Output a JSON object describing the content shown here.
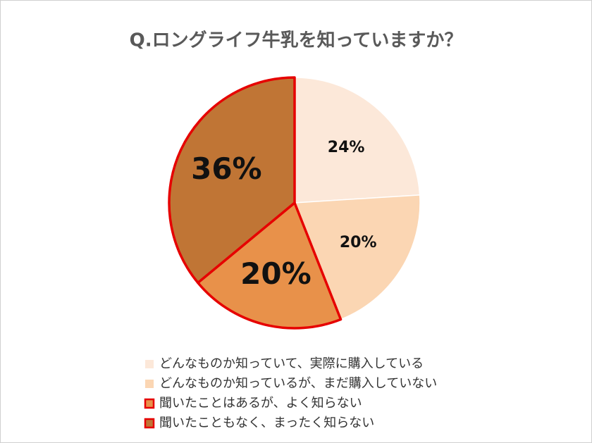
{
  "chart_data": {
    "type": "pie",
    "title": "Q.ロングライフ牛乳を知っていますか？",
    "categories": [
      "どんなものか知っていて、実際に購入している",
      "どんなものか知っているが、まだ購入していない",
      "聞いたことはあるが、よく知らない",
      "聞いたこともなく、まったく知らない"
    ],
    "values": [
      24,
      20,
      20,
      36
    ],
    "value_labels": [
      "24%",
      "20%",
      "20%",
      "36%"
    ],
    "colors": [
      "#fce8d9",
      "#fbd6b3",
      "#e8914a",
      "#c07535"
    ],
    "edgecolors": [
      "#ffffff",
      "#ffffff",
      "#e60000",
      "#e60000"
    ],
    "start": "top",
    "direction": "clockwise",
    "legend": "bottom"
  }
}
